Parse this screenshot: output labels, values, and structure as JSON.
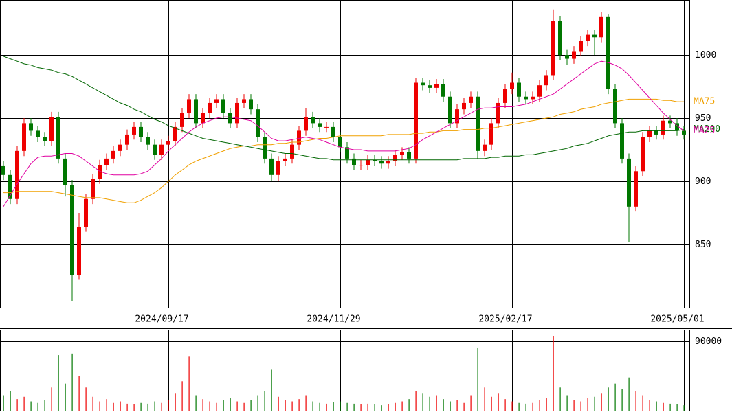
{
  "chart_data": {
    "type": "candlestick",
    "xlim": [
      -0.5,
      99.8
    ],
    "xticks": [
      {
        "value": 24,
        "label": "2024/09/17"
      },
      {
        "value": 49,
        "label": "2024/11/29"
      },
      {
        "value": 74,
        "label": "2025/02/17"
      },
      {
        "value": 99,
        "label": "2025/05/01"
      }
    ],
    "ylim": [
      800,
      1043.5
    ],
    "yticks": [
      850,
      900,
      950,
      1000
    ],
    "grid": true,
    "up_color": "#ee0000",
    "down_color": "#007700",
    "open": [
      912,
      905,
      886,
      924,
      946,
      940,
      935,
      932,
      951,
      918,
      897,
      826,
      864,
      886,
      902,
      913,
      918,
      924,
      929,
      937,
      943,
      935,
      929,
      921,
      929,
      932,
      943,
      954,
      965,
      946,
      954,
      962,
      965,
      954,
      946,
      962,
      965,
      957,
      935,
      918,
      905,
      916,
      918,
      929,
      940,
      951,
      946,
      943,
      943,
      935,
      927,
      918,
      913,
      913,
      917,
      916,
      914,
      916,
      921,
      923,
      918,
      978,
      976,
      974,
      977,
      967,
      946,
      957,
      962,
      967,
      924,
      929,
      946,
      962,
      973,
      978,
      967,
      965,
      967,
      976,
      984,
      1027,
      1000,
      997,
      1003,
      1011,
      1016,
      1014,
      1030,
      973,
      946,
      918,
      880,
      908,
      935,
      940,
      937,
      948,
      946,
      940
    ],
    "high": [
      916,
      909,
      928,
      950,
      950,
      944,
      939,
      955,
      955,
      922,
      901,
      875,
      890,
      906,
      917,
      922,
      928,
      933,
      941,
      947,
      947,
      939,
      933,
      933,
      936,
      947,
      958,
      969,
      969,
      958,
      966,
      969,
      969,
      958,
      966,
      969,
      969,
      961,
      939,
      922,
      920,
      922,
      933,
      944,
      958,
      955,
      950,
      947,
      947,
      939,
      931,
      922,
      917,
      921,
      921,
      920,
      920,
      925,
      927,
      927,
      982,
      982,
      980,
      981,
      981,
      971,
      961,
      966,
      971,
      971,
      933,
      950,
      966,
      977,
      986,
      982,
      971,
      971,
      980,
      988,
      1036,
      1031,
      1004,
      1007,
      1015,
      1020,
      1020,
      1034,
      1032,
      977,
      950,
      922,
      912,
      939,
      944,
      944,
      952,
      952,
      950,
      944
    ],
    "low": [
      901,
      882,
      882,
      920,
      936,
      931,
      928,
      928,
      914,
      888,
      805,
      822,
      860,
      882,
      898,
      909,
      914,
      920,
      925,
      933,
      931,
      925,
      917,
      917,
      925,
      928,
      939,
      950,
      942,
      942,
      950,
      958,
      950,
      942,
      942,
      958,
      953,
      931,
      914,
      900,
      900,
      912,
      914,
      925,
      936,
      942,
      939,
      939,
      931,
      923,
      914,
      909,
      909,
      909,
      912,
      910,
      910,
      912,
      917,
      914,
      914,
      972,
      970,
      970,
      963,
      942,
      942,
      953,
      958,
      918,
      920,
      925,
      942,
      958,
      969,
      963,
      961,
      961,
      963,
      972,
      980,
      996,
      992,
      993,
      999,
      1007,
      1000,
      1010,
      969,
      942,
      914,
      852,
      876,
      904,
      931,
      933,
      933,
      942,
      936,
      933
    ],
    "close": [
      905,
      886,
      924,
      946,
      940,
      935,
      932,
      951,
      918,
      897,
      826,
      864,
      886,
      902,
      913,
      918,
      924,
      929,
      937,
      943,
      935,
      929,
      921,
      929,
      932,
      943,
      954,
      965,
      946,
      954,
      962,
      965,
      954,
      946,
      962,
      965,
      957,
      935,
      918,
      905,
      916,
      918,
      929,
      940,
      951,
      946,
      943,
      943,
      935,
      927,
      918,
      913,
      913,
      917,
      916,
      914,
      916,
      921,
      923,
      918,
      978,
      976,
      974,
      977,
      967,
      946,
      957,
      962,
      967,
      924,
      929,
      946,
      962,
      973,
      978,
      967,
      965,
      967,
      976,
      984,
      1027,
      1000,
      997,
      1003,
      1011,
      1016,
      1014,
      1030,
      973,
      946,
      918,
      880,
      908,
      935,
      940,
      937,
      948,
      946,
      940,
      937
    ],
    "moving_averages": [
      {
        "name": "MA75",
        "color": "#f0a000",
        "values": [
          891,
          891,
          892,
          892,
          892,
          892,
          892,
          892,
          891,
          890,
          889,
          888,
          887,
          887,
          887,
          886,
          885,
          884,
          883,
          883,
          885,
          888,
          891,
          895,
          900,
          905,
          909,
          913,
          916,
          918,
          920,
          922,
          924,
          926,
          927,
          928,
          928,
          929,
          929,
          929,
          930,
          930,
          931,
          931,
          932,
          933,
          934,
          934,
          935,
          936,
          936,
          936,
          936,
          936,
          936,
          936,
          937,
          937,
          937,
          937,
          938,
          938,
          939,
          939,
          940,
          940,
          940,
          941,
          941,
          941,
          942,
          942,
          943,
          944,
          945,
          946,
          947,
          948,
          949,
          950,
          951,
          953,
          954,
          955,
          957,
          958,
          959,
          961,
          962,
          963,
          964,
          965,
          965,
          965,
          965,
          965,
          964,
          964,
          963,
          963
        ]
      },
      {
        "name": "MA200",
        "color": "#006600",
        "values": [
          999,
          997,
          995,
          993,
          992,
          990,
          989,
          988,
          986,
          985,
          983,
          980,
          977,
          974,
          971,
          968,
          965,
          962,
          960,
          957,
          955,
          952,
          949,
          947,
          944,
          942,
          940,
          938,
          936,
          934,
          933,
          932,
          931,
          930,
          929,
          928,
          927,
          926,
          925,
          924,
          923,
          922,
          922,
          921,
          920,
          919,
          918,
          918,
          917,
          917,
          917,
          917,
          917,
          917,
          917,
          917,
          917,
          917,
          917,
          917,
          917,
          917,
          917,
          917,
          917,
          917,
          917,
          918,
          918,
          918,
          918,
          919,
          919,
          920,
          920,
          920,
          921,
          921,
          922,
          923,
          924,
          925,
          926,
          928,
          929,
          930,
          932,
          934,
          936,
          937,
          938,
          939,
          939,
          940,
          940,
          940,
          940,
          940,
          940,
          941
        ]
      },
      {
        "name": "MA25",
        "color": "#e000a0",
        "values": [
          880,
          889,
          898,
          906,
          914,
          919,
          920,
          920,
          921,
          922,
          922,
          920,
          916,
          912,
          908,
          906,
          905,
          905,
          905,
          905,
          906,
          908,
          913,
          918,
          924,
          929,
          934,
          939,
          943,
          946,
          948,
          950,
          951,
          951,
          950,
          949,
          948,
          944,
          939,
          934,
          932,
          932,
          933,
          934,
          935,
          934,
          933,
          931,
          929,
          927,
          926,
          925,
          925,
          924,
          924,
          924,
          924,
          924,
          925,
          926,
          929,
          933,
          936,
          939,
          942,
          945,
          948,
          951,
          954,
          957,
          958,
          958,
          959,
          959,
          959,
          960,
          961,
          963,
          965,
          967,
          969,
          973,
          977,
          981,
          985,
          989,
          993,
          995,
          994,
          992,
          989,
          984,
          978,
          972,
          966,
          960,
          954,
          949,
          944,
          940
        ]
      }
    ],
    "volume": {
      "ylim": [
        0,
        105000
      ],
      "yticks": [
        90000
      ],
      "values": [
        20000,
        25000,
        15000,
        18000,
        12000,
        10000,
        14000,
        30000,
        72000,
        35000,
        74000,
        45000,
        30000,
        18000,
        12000,
        15000,
        10000,
        12000,
        9000,
        8000,
        10000,
        9000,
        12000,
        10000,
        14000,
        22000,
        38000,
        70000,
        20000,
        15000,
        12000,
        10000,
        14000,
        16000,
        12000,
        10000,
        14000,
        20000,
        25000,
        53000,
        18000,
        14000,
        12000,
        15000,
        20000,
        12000,
        10000,
        9000,
        11000,
        12000,
        10000,
        9000,
        8000,
        9000,
        8000,
        7000,
        8000,
        10000,
        12000,
        15000,
        25000,
        22000,
        18000,
        20000,
        15000,
        12000,
        14000,
        10000,
        20000,
        81000,
        30000,
        18000,
        22000,
        15000,
        12000,
        10000,
        9000,
        10000,
        14000,
        16000,
        97000,
        30000,
        20000,
        14000,
        12000,
        16000,
        18000,
        22000,
        30000,
        35000,
        28000,
        43000,
        25000,
        20000,
        14000,
        12000,
        10000,
        9000,
        8000,
        7000
      ]
    }
  }
}
